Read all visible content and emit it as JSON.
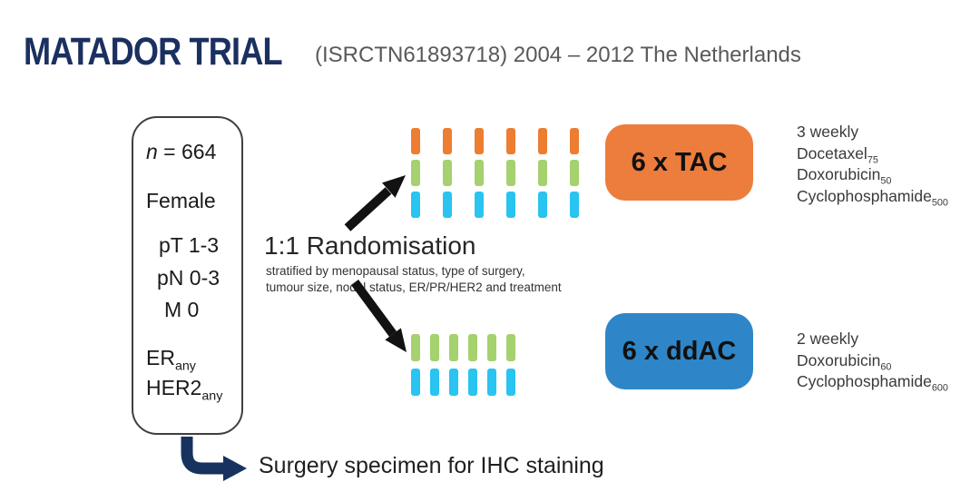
{
  "colors": {
    "navy": "#1B3060",
    "orange": "#ED7D3C",
    "blue": "#2E86C8",
    "tick_orange": "#ED7D31",
    "tick_green": "#A5D16E",
    "tick_cyan": "#29C4F0"
  },
  "header": {
    "title": "MATADOR TRIAL",
    "subtitle": "(ISRCTN61893718) 2004 – 2012 The Netherlands"
  },
  "eligibility": {
    "n_var": "n",
    "n_rest": " = 664",
    "sex": "Female",
    "stage": [
      "pT 1-3",
      "pN 0-3",
      "M 0"
    ],
    "receptors": [
      {
        "base": "ER",
        "sub": "any"
      },
      {
        "base": "HER2",
        "sub": "any"
      }
    ]
  },
  "randomisation": {
    "title": "1:1 Randomisation",
    "note_line1": "stratified by menopausal status, type of surgery,",
    "note_line2": "tumour size, nodal status, ER/PR/HER2 and treatment"
  },
  "arms": [
    {
      "label": "6 x TAC",
      "schedule": "3 weekly",
      "drugs": [
        {
          "name": "Docetaxel",
          "dose": "75"
        },
        {
          "name": "Doxorubicin",
          "dose": "50"
        },
        {
          "name": "Cyclophosphamide",
          "dose": "500"
        }
      ]
    },
    {
      "label": "6 x ddAC",
      "schedule": "2 weekly",
      "drugs": [
        {
          "name": "Doxorubicin",
          "dose": "60"
        },
        {
          "name": "Cyclophosphamide",
          "dose": "600"
        }
      ]
    }
  ],
  "cycle_grids": [
    {
      "grid": "tac",
      "cycles": 6,
      "rows": [
        "tick_orange",
        "tick_green",
        "tick_cyan"
      ],
      "col_gap": 25,
      "row_gap": 6,
      "tick_w": 10,
      "tick_h": 29
    },
    {
      "grid": "ddac",
      "cycles": 6,
      "rows": [
        "tick_green",
        "tick_cyan"
      ],
      "col_gap": 11,
      "row_gap": 8,
      "tick_w": 10,
      "tick_h": 30
    }
  ],
  "footer": {
    "label": "Surgery specimen for IHC staining"
  }
}
